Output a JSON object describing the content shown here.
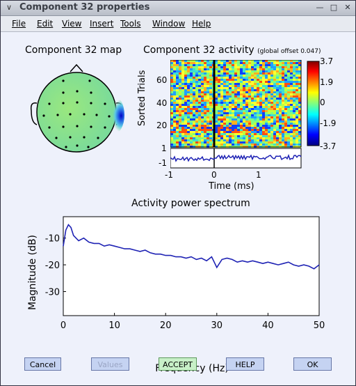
{
  "window": {
    "title": "Component 32 properties"
  },
  "titlebar": {
    "menu_icon": "chevron-down-icon",
    "minimize_icon": "minimize-icon",
    "maximize_icon": "maximize-icon",
    "close_icon": "close-icon"
  },
  "menu": [
    "File",
    "Edit",
    "View",
    "Insert",
    "Tools",
    "Window",
    "Help"
  ],
  "scalp_map": {
    "title": "Component 32 map"
  },
  "erp_image": {
    "title": "Component 32 activity",
    "subtitle": "(global offset 0.047)",
    "ylabel": "Sorted Trials",
    "yticks": [
      "60",
      "40",
      "20"
    ],
    "trace_ticks": [
      "1",
      "-1"
    ],
    "xticks": [
      "-1",
      "0",
      "1"
    ],
    "xlabel": "Time (ms)",
    "colorbar_ticks": [
      "3.7",
      "1.9",
      "0",
      "-1.9",
      "-3.7"
    ]
  },
  "chart_data": {
    "type": "line",
    "title": "Activity power spectrum",
    "xlabel": "Frequency (Hz)",
    "ylabel": "Magnitude (dB)",
    "xlim": [
      0,
      50
    ],
    "ylim": [
      -39,
      -2
    ],
    "xticks": [
      0,
      10,
      20,
      30,
      40,
      50
    ],
    "yticks": [
      -10,
      -20,
      -30
    ],
    "x": [
      0,
      0.5,
      1,
      1.5,
      2,
      3,
      4,
      5,
      6,
      7,
      8,
      9,
      10,
      11,
      12,
      13,
      14,
      15,
      16,
      17,
      18,
      19,
      20,
      21,
      22,
      23,
      24,
      25,
      26,
      27,
      28,
      29,
      29.5,
      30,
      31,
      32,
      33,
      34,
      35,
      36,
      37,
      38,
      39,
      40,
      41,
      42,
      43,
      44,
      45,
      46,
      47,
      48,
      49,
      50
    ],
    "y": [
      -13,
      -7,
      -5,
      -6,
      -9,
      -11,
      -10,
      -11.5,
      -12,
      -12,
      -13,
      -12.5,
      -13,
      -13.5,
      -14,
      -14,
      -14.5,
      -15,
      -14.5,
      -15.5,
      -16,
      -16,
      -16.5,
      -16.5,
      -17,
      -17,
      -17.5,
      -17,
      -18,
      -17.5,
      -18.5,
      -17,
      -19,
      -21,
      -18,
      -17.5,
      -18,
      -19,
      -18.5,
      -19,
      -18.5,
      -19,
      -19.5,
      -19,
      -19.5,
      -20,
      -19.5,
      -19,
      -20,
      -20.5,
      -20,
      -20.5,
      -21.5,
      -20
    ]
  },
  "buttons": {
    "cancel": "Cancel",
    "values": "Values",
    "accept": "ACCEPT",
    "help": "HELP",
    "ok": "OK"
  }
}
